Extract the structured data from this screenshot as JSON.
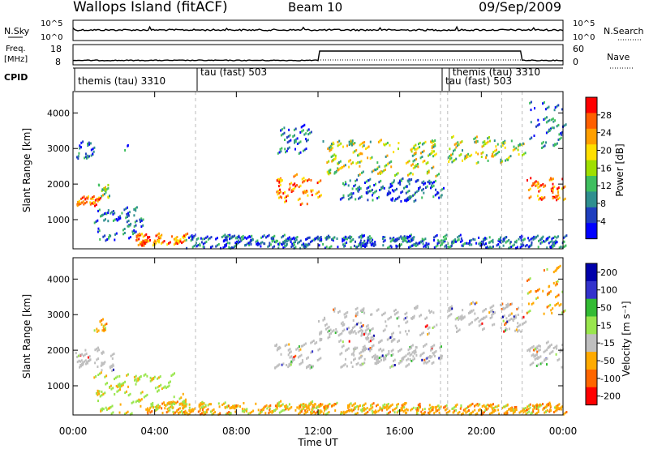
{
  "header": {
    "site": "Wallops Island (fitACF)",
    "beam": "Beam 10",
    "date": "09/Sep/2009"
  },
  "param_panels": {
    "nsky": {
      "label": "N.Sky",
      "left_ticks": [
        "10^5",
        "10^0"
      ],
      "right_ticks": [
        "10^5",
        "10^0"
      ],
      "right_label": "N.Search"
    },
    "freq": {
      "label_line1": "Freq.",
      "label_line2": "[MHz]",
      "left_ticks": [
        "18",
        "8"
      ],
      "right_ticks": [
        "60",
        "0"
      ],
      "right_label": "Nave"
    },
    "cpid": {
      "label": "CPID"
    }
  },
  "cpid_labels": [
    {
      "text": "themis (tau) 3310",
      "hour": 0.0
    },
    {
      "text": "tau (fast) 503",
      "hour": 6.0
    },
    {
      "text": "tau (fast) 503",
      "hour": 18.0
    },
    {
      "text": "themis (tau) 3310",
      "hour": 18.35
    }
  ],
  "x_axis": {
    "title": "Time UT",
    "ticks": [
      "00:00",
      "04:00",
      "08:00",
      "12:00",
      "16:00",
      "20:00",
      "00:00"
    ]
  },
  "colors": {
    "power": [
      "#0000ff",
      "#1f3fbf",
      "#2f8f8f",
      "#3fbf5f",
      "#9fdf00",
      "#ffdf00",
      "#ff9f00",
      "#ff5f00",
      "#ff0000"
    ],
    "velocity": [
      "#ff0000",
      "#ff6600",
      "#ffaa00",
      "#bfbfbf",
      "#99e64d",
      "#33bb33",
      "#3333cc",
      "#0000aa"
    ]
  },
  "chart_data": [
    {
      "type": "heatmap",
      "name": "power",
      "ylabel": "Slant Range [km]",
      "xlabel": "",
      "ylim": [
        180,
        4600
      ],
      "xlim": [
        0,
        24
      ],
      "yticks": [
        "1000",
        "2000",
        "3000",
        "4000"
      ],
      "colorbar": {
        "label": "Power [dB]",
        "range": [
          0,
          32
        ],
        "ticks": [
          "4",
          "8",
          "12",
          "16",
          "20",
          "24",
          "28"
        ]
      },
      "dashed_vlines_hours": [
        6.0,
        18.0,
        18.35,
        21.0,
        22.0
      ],
      "regions": [
        {
          "t0": 0.1,
          "t1": 1.2,
          "r0": 1350,
          "r1": 1600,
          "level": "high"
        },
        {
          "t0": 1.2,
          "t1": 1.9,
          "r0": 1600,
          "r1": 2000,
          "level": "mid"
        },
        {
          "t0": 0.1,
          "t1": 1.0,
          "r0": 2700,
          "r1": 3200,
          "level": "low"
        },
        {
          "t0": 2.5,
          "t1": 2.7,
          "r0": 2800,
          "r1": 3100,
          "level": "low"
        },
        {
          "t0": 1.0,
          "t1": 3.5,
          "r0": 400,
          "r1": 1300,
          "level": "low"
        },
        {
          "t0": 3.0,
          "t1": 5.5,
          "r0": 250,
          "r1": 550,
          "level": "high"
        },
        {
          "t0": 5.5,
          "t1": 12.0,
          "r0": 180,
          "r1": 500,
          "level": "low"
        },
        {
          "t0": 9.8,
          "t1": 12.0,
          "r0": 1400,
          "r1": 2200,
          "level": "high"
        },
        {
          "t0": 10.0,
          "t1": 11.5,
          "r0": 2800,
          "r1": 3600,
          "level": "low"
        },
        {
          "t0": 12.0,
          "t1": 17.8,
          "r0": 2200,
          "r1": 3200,
          "level": "mid"
        },
        {
          "t0": 13.0,
          "t1": 18.0,
          "r0": 1500,
          "r1": 2100,
          "level": "low"
        },
        {
          "t0": 12.0,
          "t1": 24.0,
          "r0": 180,
          "r1": 500,
          "level": "low"
        },
        {
          "t0": 18.3,
          "t1": 21.5,
          "r0": 2500,
          "r1": 3300,
          "level": "mid"
        },
        {
          "t0": 21.5,
          "t1": 22.0,
          "r0": 2800,
          "r1": 3100,
          "level": "mid"
        },
        {
          "t0": 22.2,
          "t1": 24.0,
          "r0": 1500,
          "r1": 2200,
          "level": "high"
        },
        {
          "t0": 22.2,
          "t1": 24.0,
          "r0": 3000,
          "r1": 4300,
          "level": "low"
        }
      ]
    },
    {
      "type": "heatmap",
      "name": "velocity",
      "ylabel": "Slant Range [km]",
      "xlabel": "Time UT",
      "ylim": [
        180,
        4600
      ],
      "xlim": [
        0,
        24
      ],
      "yticks": [
        "1000",
        "2000",
        "3000",
        "4000"
      ],
      "colorbar": {
        "label": "Velocity [m s⁻¹]",
        "range": [
          -250,
          250
        ],
        "ticks": [
          "200",
          "100",
          "50",
          "15",
          "-15",
          "-50",
          "-100",
          "-200"
        ]
      },
      "dashed_vlines_hours": [
        6.0,
        18.0,
        18.35,
        21.0,
        22.0
      ],
      "regions": [
        {
          "t0": 0.1,
          "t1": 1.9,
          "r0": 1350,
          "r1": 2000,
          "level": "grey"
        },
        {
          "t0": 1.0,
          "t1": 1.6,
          "r0": 2500,
          "r1": 2800,
          "level": "orange"
        },
        {
          "t0": 1.0,
          "t1": 5.5,
          "r0": 180,
          "r1": 1300,
          "level": "green"
        },
        {
          "t0": 3.5,
          "t1": 12.0,
          "r0": 180,
          "r1": 500,
          "level": "orange"
        },
        {
          "t0": 9.8,
          "t1": 12.0,
          "r0": 1400,
          "r1": 2200,
          "level": "grey"
        },
        {
          "t0": 12.0,
          "t1": 17.8,
          "r0": 2200,
          "r1": 3200,
          "level": "grey"
        },
        {
          "t0": 13.0,
          "t1": 18.0,
          "r0": 1500,
          "r1": 2100,
          "level": "grey"
        },
        {
          "t0": 12.0,
          "t1": 24.0,
          "r0": 180,
          "r1": 450,
          "level": "orange"
        },
        {
          "t0": 18.3,
          "t1": 22.0,
          "r0": 2500,
          "r1": 3300,
          "level": "grey"
        },
        {
          "t0": 22.2,
          "t1": 24.0,
          "r0": 1500,
          "r1": 2200,
          "level": "grey"
        },
        {
          "t0": 22.2,
          "t1": 24.0,
          "r0": 3000,
          "r1": 4300,
          "level": "orange"
        }
      ]
    }
  ]
}
